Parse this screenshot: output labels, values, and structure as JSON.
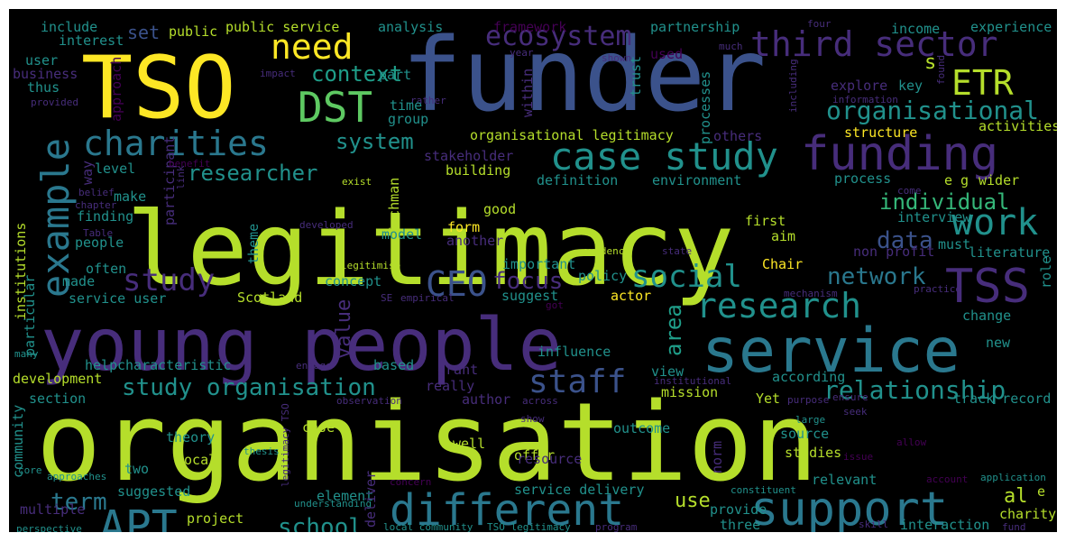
{
  "wordcloud": {
    "background": "#000000",
    "palette": {
      "lime": "#b5de2b",
      "yellow": "#fde725",
      "green": "#5ec962",
      "teal": "#21918c",
      "cyan": "#2a788e",
      "blue": "#3b528b",
      "indigo": "#472d7b",
      "purple": "#440154",
      "sea": "#35b779",
      "mint": "#1f9e89"
    },
    "words": [
      {
        "text": "organisation",
        "color": "lime"
      },
      {
        "text": "legitimacy",
        "color": "lime"
      },
      {
        "text": "funder",
        "color": "blue"
      },
      {
        "text": "TSO",
        "color": "yellow"
      },
      {
        "text": "young people",
        "color": "indigo"
      },
      {
        "text": "service",
        "color": "cyan"
      },
      {
        "text": "funding",
        "color": "indigo"
      },
      {
        "text": "support",
        "color": "cyan"
      },
      {
        "text": "different",
        "color": "cyan"
      },
      {
        "text": "case study",
        "color": "teal"
      },
      {
        "text": "example",
        "color": "cyan"
      },
      {
        "text": "TSS",
        "color": "indigo"
      },
      {
        "text": "third sector",
        "color": "indigo"
      },
      {
        "text": "work",
        "color": "teal"
      },
      {
        "text": "APT",
        "color": "cyan"
      },
      {
        "text": "DST",
        "color": "green"
      },
      {
        "text": "need",
        "color": "yellow"
      },
      {
        "text": "research",
        "color": "teal"
      },
      {
        "text": "charities",
        "color": "cyan"
      },
      {
        "text": "CEO",
        "color": "blue"
      },
      {
        "text": "ETR",
        "color": "lime"
      },
      {
        "text": "social",
        "color": "teal"
      },
      {
        "text": "study",
        "color": "indigo"
      },
      {
        "text": "staff",
        "color": "blue"
      },
      {
        "text": "relationship",
        "color": "teal"
      },
      {
        "text": "ecosystem",
        "color": "indigo"
      },
      {
        "text": "organisational",
        "color": "teal"
      },
      {
        "text": "study organisation",
        "color": "teal"
      },
      {
        "text": "focus",
        "color": "indigo"
      },
      {
        "text": "term",
        "color": "cyan"
      },
      {
        "text": "network",
        "color": "cyan"
      },
      {
        "text": "school",
        "color": "teal"
      },
      {
        "text": "data",
        "color": "blue"
      },
      {
        "text": "individual",
        "color": "sea"
      },
      {
        "text": "context",
        "color": "mint"
      },
      {
        "text": "system",
        "color": "teal"
      },
      {
        "text": "researcher",
        "color": "teal"
      },
      {
        "text": "area",
        "color": "mint"
      },
      {
        "text": "value",
        "color": "indigo"
      },
      {
        "text": "use",
        "color": "lime"
      },
      {
        "text": "s",
        "color": "lime"
      },
      {
        "text": "al",
        "color": "lime"
      },
      {
        "text": "set",
        "color": "blue"
      },
      {
        "text": "organisational legitimacy",
        "color": "lime"
      },
      {
        "text": "stakeholder",
        "color": "indigo"
      },
      {
        "text": "building",
        "color": "lime"
      },
      {
        "text": "definition",
        "color": "teal"
      },
      {
        "text": "environment",
        "color": "teal"
      },
      {
        "text": "process",
        "color": "teal"
      },
      {
        "text": "e g",
        "color": "lime"
      },
      {
        "text": "wider",
        "color": "lime"
      },
      {
        "text": "structure",
        "color": "yellow"
      },
      {
        "text": "activities",
        "color": "lime"
      },
      {
        "text": "explore",
        "color": "indigo"
      },
      {
        "text": "key",
        "color": "teal"
      },
      {
        "text": "information",
        "color": "indigo"
      },
      {
        "text": "include",
        "color": "teal"
      },
      {
        "text": "interest",
        "color": "teal"
      },
      {
        "text": "public",
        "color": "lime"
      },
      {
        "text": "public service",
        "color": "lime"
      },
      {
        "text": "analysis",
        "color": "teal"
      },
      {
        "text": "framework",
        "color": "purple"
      },
      {
        "text": "partnership",
        "color": "teal"
      },
      {
        "text": "four",
        "color": "indigo"
      },
      {
        "text": "income",
        "color": "teal"
      },
      {
        "text": "experience",
        "color": "teal"
      },
      {
        "text": "user",
        "color": "teal"
      },
      {
        "text": "business",
        "color": "indigo"
      },
      {
        "text": "thus",
        "color": "teal"
      },
      {
        "text": "provided",
        "color": "indigo"
      },
      {
        "text": "approach",
        "color": "purple"
      },
      {
        "text": "impact",
        "color": "indigo"
      },
      {
        "text": "rather",
        "color": "indigo"
      },
      {
        "text": "part",
        "color": "teal"
      },
      {
        "text": "time",
        "color": "teal"
      },
      {
        "text": "group",
        "color": "teal"
      },
      {
        "text": "within",
        "color": "indigo"
      },
      {
        "text": "year",
        "color": "indigo"
      },
      {
        "text": "trust",
        "color": "teal"
      },
      {
        "text": "shown",
        "color": "indigo"
      },
      {
        "text": "used",
        "color": "purple"
      },
      {
        "text": "much",
        "color": "indigo"
      },
      {
        "text": "processes",
        "color": "teal"
      },
      {
        "text": "others",
        "color": "indigo"
      },
      {
        "text": "including",
        "color": "indigo"
      },
      {
        "text": "found",
        "color": "indigo"
      },
      {
        "text": "level",
        "color": "teal"
      },
      {
        "text": "participant",
        "color": "indigo"
      },
      {
        "text": "benefit",
        "color": "purple"
      },
      {
        "text": "way",
        "color": "indigo"
      },
      {
        "text": "belief",
        "color": "indigo"
      },
      {
        "text": "chapter",
        "color": "indigo"
      },
      {
        "text": "make",
        "color": "teal"
      },
      {
        "text": "link",
        "color": "indigo"
      },
      {
        "text": "exist",
        "color": "lime"
      },
      {
        "text": "Suchman",
        "color": "lime"
      },
      {
        "text": "good",
        "color": "lime"
      },
      {
        "text": "form",
        "color": "yellow"
      },
      {
        "text": "another",
        "color": "indigo"
      },
      {
        "text": "finding",
        "color": "teal"
      },
      {
        "text": "institutions",
        "color": "lime"
      },
      {
        "text": "developed",
        "color": "indigo"
      },
      {
        "text": "model",
        "color": "teal"
      },
      {
        "text": "people",
        "color": "teal"
      },
      {
        "text": "Table",
        "color": "indigo"
      },
      {
        "text": "theme",
        "color": "teal"
      },
      {
        "text": "often",
        "color": "teal"
      },
      {
        "text": "made",
        "color": "teal"
      },
      {
        "text": "legitimise",
        "color": "lime"
      },
      {
        "text": "important",
        "color": "teal"
      },
      {
        "text": "evidence",
        "color": "lime"
      },
      {
        "text": "state",
        "color": "indigo"
      },
      {
        "text": "aim",
        "color": "lime"
      },
      {
        "text": "first",
        "color": "lime"
      },
      {
        "text": "interview",
        "color": "teal"
      },
      {
        "text": "non profit",
        "color": "indigo"
      },
      {
        "text": "must",
        "color": "teal"
      },
      {
        "text": "literature",
        "color": "teal"
      },
      {
        "text": "come",
        "color": "indigo"
      },
      {
        "text": "Chair",
        "color": "yellow"
      },
      {
        "text": "policy",
        "color": "teal"
      },
      {
        "text": "actor",
        "color": "yellow"
      },
      {
        "text": "mechanism",
        "color": "indigo"
      },
      {
        "text": "practice",
        "color": "indigo"
      },
      {
        "text": "role",
        "color": "teal"
      },
      {
        "text": "service user",
        "color": "teal"
      },
      {
        "text": "concept",
        "color": "teal"
      },
      {
        "text": "Scotland",
        "color": "lime"
      },
      {
        "text": "empirical",
        "color": "indigo"
      },
      {
        "text": "SE",
        "color": "indigo"
      },
      {
        "text": "suggest",
        "color": "teal"
      },
      {
        "text": "got",
        "color": "purple"
      },
      {
        "text": "particular",
        "color": "teal"
      },
      {
        "text": "change",
        "color": "teal"
      },
      {
        "text": "new",
        "color": "teal"
      },
      {
        "text": "many",
        "color": "teal"
      },
      {
        "text": "help",
        "color": "teal"
      },
      {
        "text": "characteristic",
        "color": "teal"
      },
      {
        "text": "engage",
        "color": "indigo"
      },
      {
        "text": "based",
        "color": "teal"
      },
      {
        "text": "grant",
        "color": "indigo"
      },
      {
        "text": "influence",
        "color": "teal"
      },
      {
        "text": "view",
        "color": "teal"
      },
      {
        "text": "according",
        "color": "teal"
      },
      {
        "text": "development",
        "color": "lime"
      },
      {
        "text": "section",
        "color": "teal"
      },
      {
        "text": "community",
        "color": "teal"
      },
      {
        "text": "observation",
        "color": "indigo"
      },
      {
        "text": "really",
        "color": "indigo"
      },
      {
        "text": "author",
        "color": "indigo"
      },
      {
        "text": "across",
        "color": "indigo"
      },
      {
        "text": "institutional",
        "color": "indigo"
      },
      {
        "text": "mission",
        "color": "lime"
      },
      {
        "text": "Yet",
        "color": "lime"
      },
      {
        "text": "purpose",
        "color": "indigo"
      },
      {
        "text": "ensure",
        "color": "indigo"
      },
      {
        "text": "track record",
        "color": "teal"
      },
      {
        "text": "seek",
        "color": "indigo"
      },
      {
        "text": "show",
        "color": "indigo"
      },
      {
        "text": "theory",
        "color": "teal"
      },
      {
        "text": "case",
        "color": "lime"
      },
      {
        "text": "outcome",
        "color": "teal"
      },
      {
        "text": "source",
        "color": "teal"
      },
      {
        "text": "large",
        "color": "teal"
      },
      {
        "text": "local",
        "color": "lime"
      },
      {
        "text": "legitimacy TSO",
        "color": "indigo"
      },
      {
        "text": "well",
        "color": "lime"
      },
      {
        "text": "offer",
        "color": "lime"
      },
      {
        "text": "resource",
        "color": "indigo"
      },
      {
        "text": "studies",
        "color": "lime"
      },
      {
        "text": "norm",
        "color": "indigo"
      },
      {
        "text": "allow",
        "color": "purple"
      },
      {
        "text": "thesis",
        "color": "teal"
      },
      {
        "text": "issue",
        "color": "purple"
      },
      {
        "text": "core",
        "color": "teal"
      },
      {
        "text": "two",
        "color": "teal"
      },
      {
        "text": "approaches",
        "color": "teal"
      },
      {
        "text": "suggested",
        "color": "teal"
      },
      {
        "text": "element",
        "color": "teal"
      },
      {
        "text": "concern",
        "color": "purple"
      },
      {
        "text": "service delivery",
        "color": "teal"
      },
      {
        "text": "relevant",
        "color": "teal"
      },
      {
        "text": "constituent",
        "color": "teal"
      },
      {
        "text": "account",
        "color": "purple"
      },
      {
        "text": "application",
        "color": "teal"
      },
      {
        "text": "e",
        "color": "lime"
      },
      {
        "text": "multiple",
        "color": "indigo"
      },
      {
        "text": "understanding",
        "color": "teal"
      },
      {
        "text": "provide",
        "color": "teal"
      },
      {
        "text": "charity",
        "color": "lime"
      },
      {
        "text": "perspective",
        "color": "teal"
      },
      {
        "text": "project",
        "color": "lime"
      },
      {
        "text": "deliver",
        "color": "indigo"
      },
      {
        "text": "local community",
        "color": "teal"
      },
      {
        "text": "TSO legitimacy",
        "color": "teal"
      },
      {
        "text": "program",
        "color": "indigo"
      },
      {
        "text": "three",
        "color": "teal"
      },
      {
        "text": "skill",
        "color": "indigo"
      },
      {
        "text": "interaction",
        "color": "teal"
      },
      {
        "text": "fund",
        "color": "indigo"
      }
    ]
  }
}
